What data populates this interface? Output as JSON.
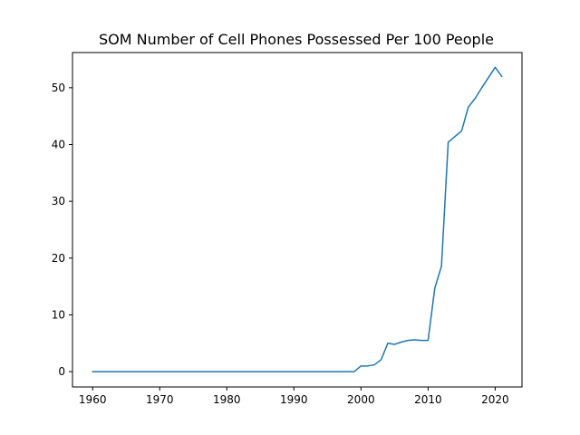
{
  "chart_data": {
    "type": "line",
    "title": "SOM Number of Cell Phones Possessed Per 100 People",
    "xlabel": "",
    "ylabel": "",
    "xlim": [
      1957,
      2024
    ],
    "ylim": [
      -2.7,
      56.2
    ],
    "xticks": [
      1960,
      1970,
      1980,
      1990,
      2000,
      2010,
      2020
    ],
    "yticks": [
      0,
      10,
      20,
      30,
      40,
      50
    ],
    "grid": false,
    "legend": "none",
    "series": [
      {
        "color": "#1f77b4",
        "x": [
          1960,
          1961,
          1962,
          1963,
          1964,
          1965,
          1966,
          1967,
          1968,
          1969,
          1970,
          1971,
          1972,
          1973,
          1974,
          1975,
          1976,
          1977,
          1978,
          1979,
          1980,
          1981,
          1982,
          1983,
          1984,
          1985,
          1986,
          1987,
          1988,
          1989,
          1990,
          1991,
          1992,
          1993,
          1994,
          1995,
          1996,
          1997,
          1998,
          1999,
          2000,
          2001,
          2002,
          2003,
          2004,
          2005,
          2006,
          2007,
          2008,
          2009,
          2010,
          2011,
          2012,
          2013,
          2014,
          2015,
          2016,
          2017,
          2018,
          2019,
          2020,
          2021
        ],
        "y": [
          0,
          0,
          0,
          0,
          0,
          0,
          0,
          0,
          0,
          0,
          0,
          0,
          0,
          0,
          0,
          0,
          0,
          0,
          0,
          0,
          0,
          0,
          0,
          0,
          0,
          0,
          0,
          0,
          0,
          0,
          0,
          0,
          0,
          0,
          0,
          0,
          0,
          0,
          0,
          0,
          1.0,
          1.0,
          1.2,
          2.1,
          5.0,
          4.8,
          5.2,
          5.5,
          5.6,
          5.5,
          5.5,
          14.7,
          18.6,
          40.4,
          41.4,
          42.4,
          46.6,
          48.1,
          50.0,
          51.8,
          53.6,
          52.0
        ]
      }
    ]
  }
}
